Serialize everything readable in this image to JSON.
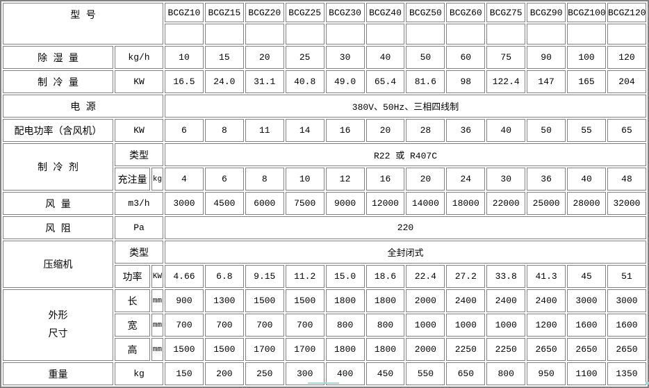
{
  "title_cell": "型 号",
  "models": [
    "BCGZ10",
    "BCGZ15",
    "BCGZ20",
    "BCGZ25",
    "BCGZ30",
    "BCGZ40",
    "BCGZ50",
    "BCGZ60",
    "BCGZ75",
    "BCGZ90",
    "BCGZ100",
    "BCGZ120"
  ],
  "rows": {
    "dehumidify": {
      "label": "除 湿 量",
      "unit": "kg/h",
      "values": [
        "10",
        "15",
        "20",
        "25",
        "30",
        "40",
        "50",
        "60",
        "75",
        "90",
        "100",
        "120"
      ]
    },
    "cooling": {
      "label": "制 冷 量",
      "unit": "KW",
      "values": [
        "16.5",
        "24.0",
        "31.1",
        "40.8",
        "49.0",
        "65.4",
        "81.6",
        "98",
        "122.4",
        "147",
        "165",
        "204"
      ]
    },
    "power_supply": {
      "label": "电 源",
      "value": "380V、50Hz、三相四线制"
    },
    "power_dist": {
      "label": "配电功率（含风机）",
      "unit": "KW",
      "values": [
        "6",
        "8",
        "11",
        "14",
        "16",
        "20",
        "28",
        "36",
        "40",
        "50",
        "55",
        "65"
      ]
    },
    "refrigerant": {
      "label": "制 冷 剂",
      "type_label": "类型",
      "type_value": "R22 或 R407C",
      "charge_label": "充注量",
      "charge_unit": "kg",
      "charge_values": [
        "4",
        "6",
        "8",
        "10",
        "12",
        "16",
        "20",
        "24",
        "30",
        "36",
        "40",
        "48"
      ]
    },
    "air_volume": {
      "label": "风 量",
      "unit": "m3/h",
      "values": [
        "3000",
        "4500",
        "6000",
        "7500",
        "9000",
        "12000",
        "14000",
        "18000",
        "22000",
        "25000",
        "28000",
        "32000"
      ]
    },
    "air_resistance": {
      "label": "风 阻",
      "unit": "Pa",
      "value": "220"
    },
    "compressor": {
      "label": "压缩机",
      "type_label": "类型",
      "type_value": "全封闭式",
      "power_label": "功率",
      "power_unit": "KW",
      "power_values": [
        "4.66",
        "6.8",
        "9.15",
        "11.2",
        "15.0",
        "18.6",
        "22.4",
        "27.2",
        "33.8",
        "41.3",
        "45",
        "51"
      ]
    },
    "dimensions": {
      "label_line1": "外形",
      "label_line2": "尺寸",
      "unit": "mm",
      "length_label": "长",
      "length_values": [
        "900",
        "1300",
        "1500",
        "1500",
        "1800",
        "1800",
        "2000",
        "2400",
        "2400",
        "2400",
        "3000",
        "3000"
      ],
      "width_label": "宽",
      "width_values": [
        "700",
        "700",
        "700",
        "700",
        "800",
        "800",
        "1000",
        "1000",
        "1000",
        "1200",
        "1600",
        "1600"
      ],
      "height_label": "高",
      "height_values": [
        "1500",
        "1500",
        "1700",
        "1700",
        "1800",
        "1800",
        "2000",
        "2250",
        "2250",
        "2650",
        "2650",
        "2650"
      ]
    },
    "weight": {
      "label": "重量",
      "unit": "kg",
      "values": [
        "150",
        "200",
        "250",
        "300",
        "400",
        "450",
        "550",
        "650",
        "800",
        "950",
        "1100",
        "1350"
      ]
    }
  },
  "colors": {
    "border": "#808080",
    "highlight": "#9ed6d6",
    "text": "#000000",
    "background": "#ffffff"
  }
}
